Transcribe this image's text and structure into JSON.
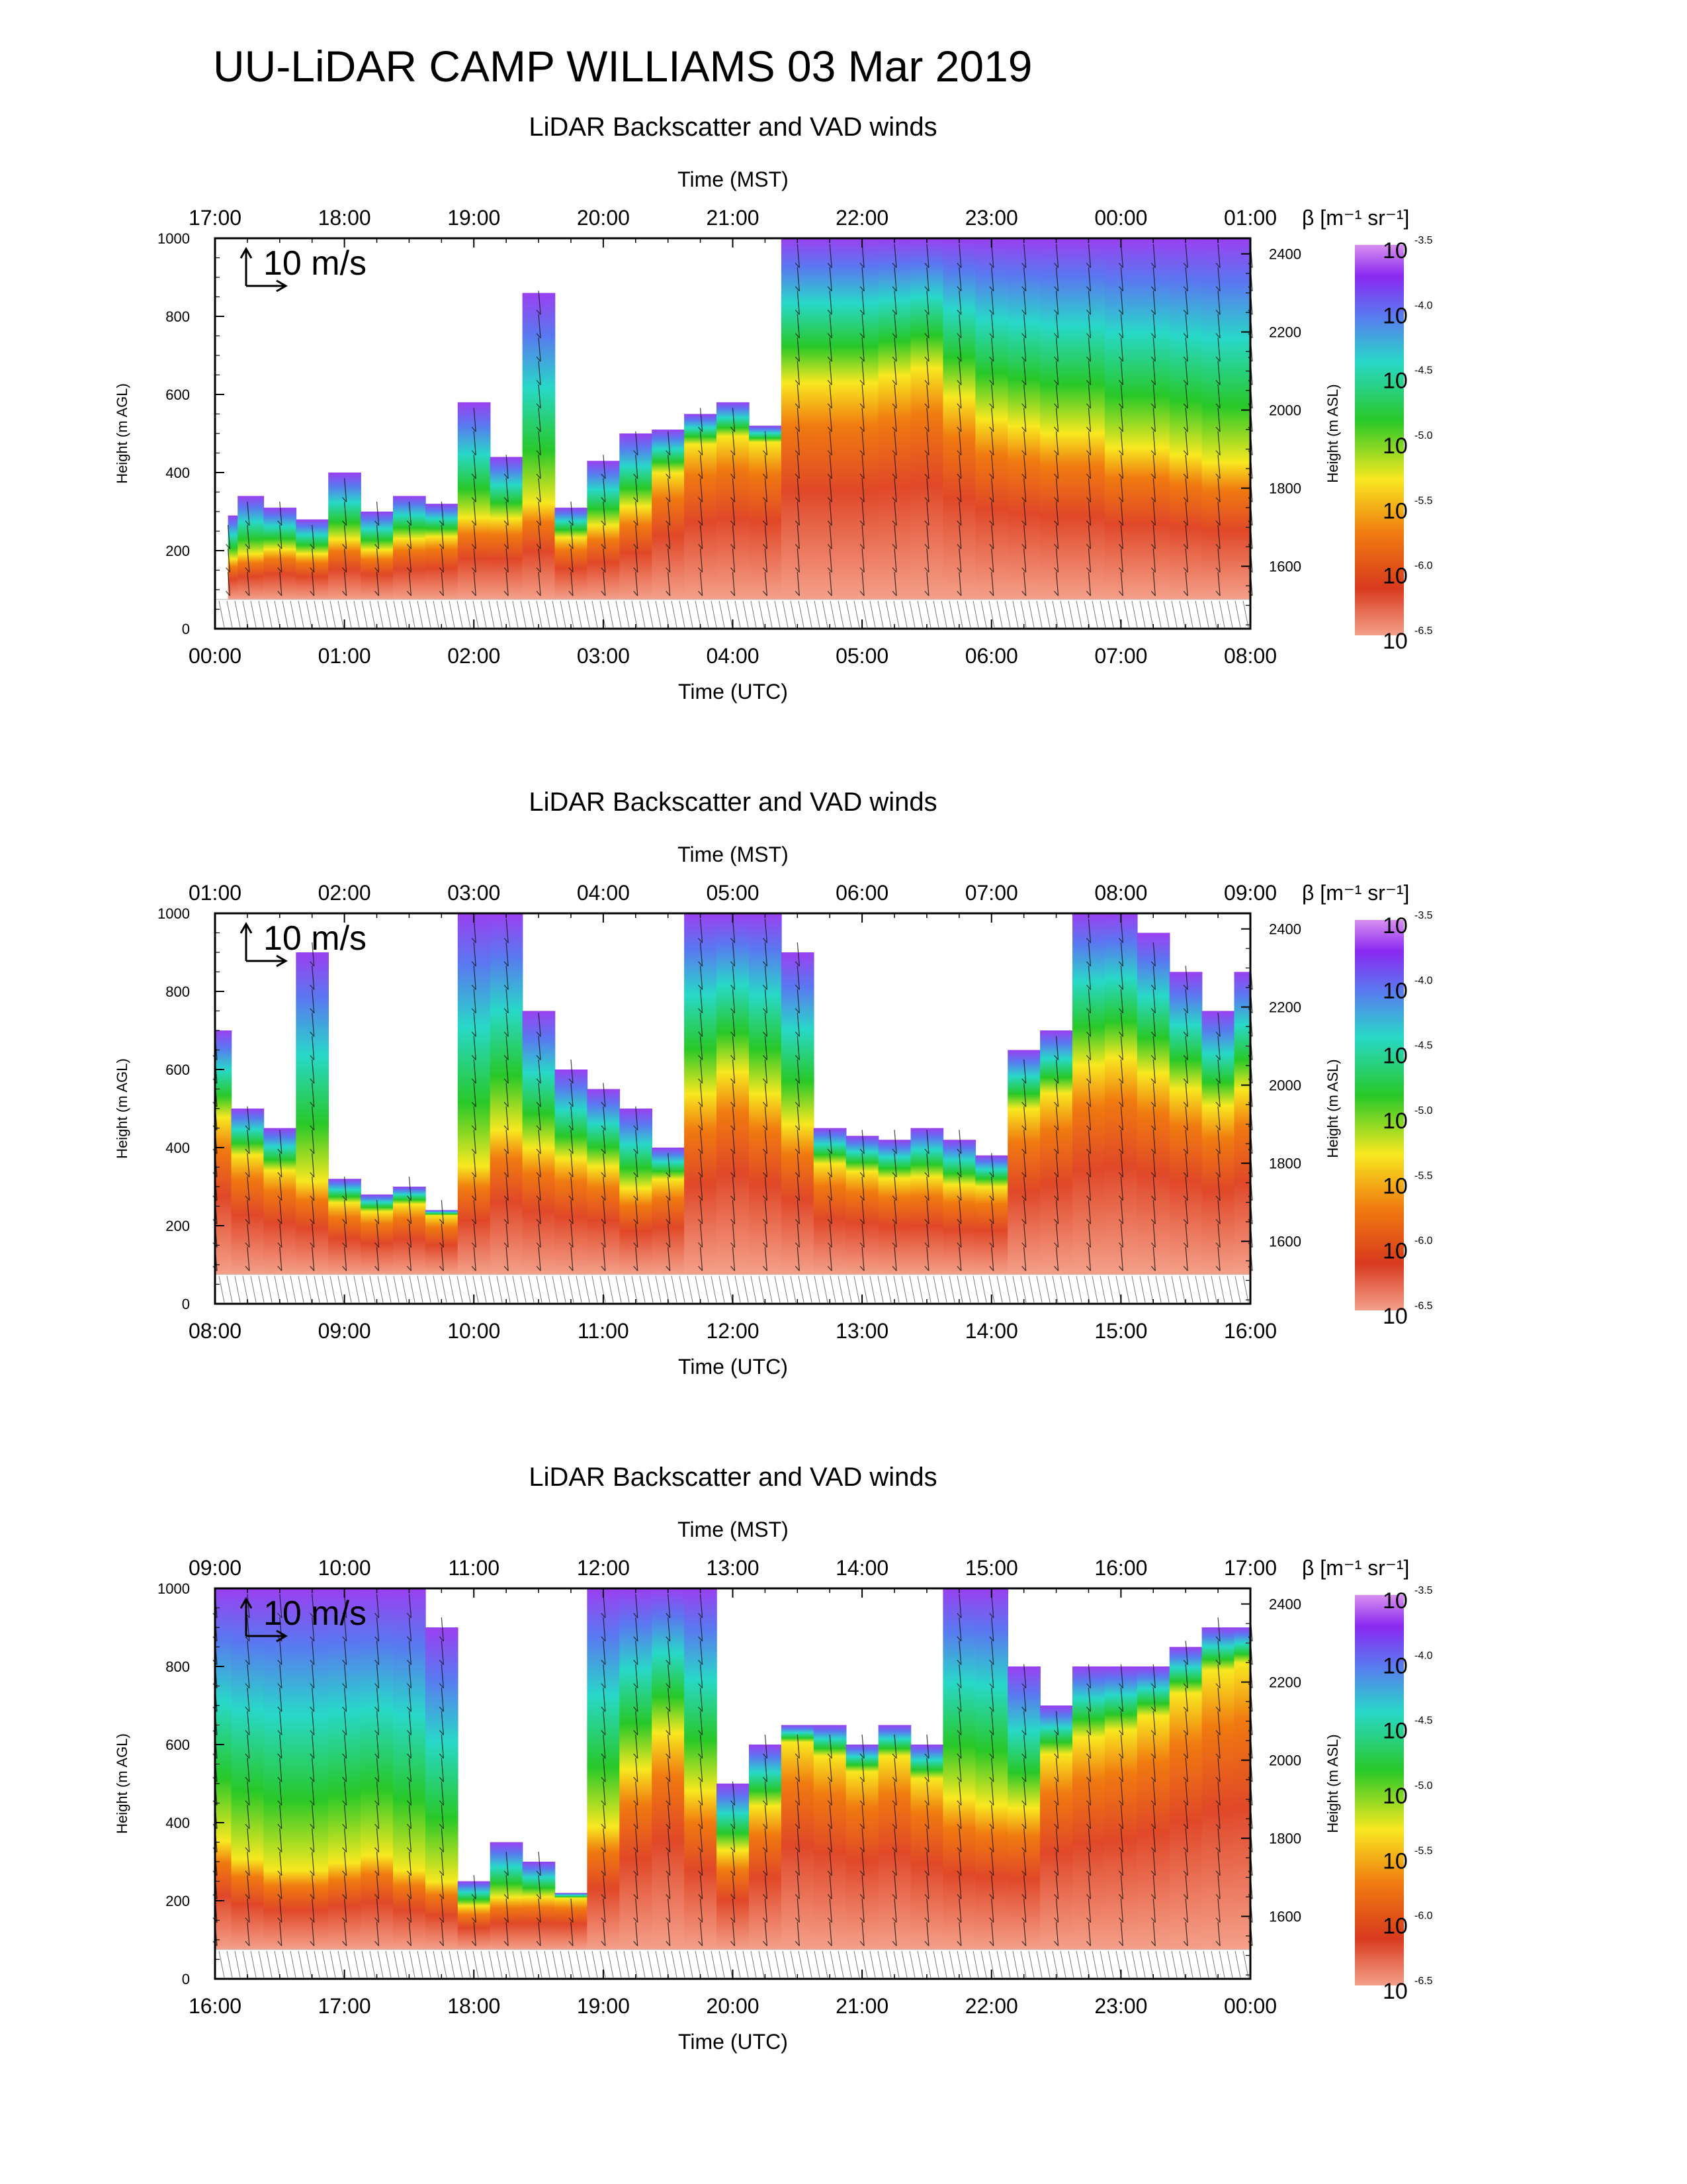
{
  "figure_title": "UU-LiDAR CAMP WILLIAMS 03 Mar 2019",
  "scale_label": "10 m/s",
  "colorbar": {
    "label": "β [m⁻¹ sr⁻¹]",
    "tick_exponents": [
      "-3.5",
      "-4.0",
      "-4.5",
      "-5.0",
      "-5.5",
      "-6.0",
      "-6.5"
    ],
    "base": "10",
    "colors": [
      "#f4a08a",
      "#d83a1e",
      "#f07a10",
      "#f8e820",
      "#28c828",
      "#28d8c8",
      "#5a78f0",
      "#8a28f0",
      "#e890f0"
    ]
  },
  "chart_data": [
    {
      "type": "heatmap",
      "title": "LiDAR Backscatter and VAD winds",
      "xlabel_bottom": "Time (UTC)",
      "xlabel_top": "Time (MST)",
      "ylabel_left": "Height (m AGL)",
      "ylabel_right": "Height (m ASL)",
      "x_ticks_utc": [
        "00:00",
        "01:00",
        "02:00",
        "03:00",
        "04:00",
        "05:00",
        "06:00",
        "07:00",
        "08:00"
      ],
      "x_ticks_mst": [
        "17:00",
        "18:00",
        "19:00",
        "20:00",
        "21:00",
        "22:00",
        "23:00",
        "00:00",
        "01:00"
      ],
      "y_ticks_left": [
        "0",
        "200",
        "400",
        "600",
        "800",
        "1000"
      ],
      "y_ticks_right": [
        "1600",
        "1800",
        "2000",
        "2200",
        "2400"
      ],
      "ylim_agl": [
        0,
        1000
      ],
      "xlim_hours": [
        0,
        8
      ],
      "profile_hours": [
        0.1,
        0.25,
        0.5,
        0.75,
        1.0,
        1.25,
        1.5,
        1.75,
        2.0,
        2.25,
        2.5,
        2.75,
        3.0,
        3.25,
        3.5,
        3.75,
        4.0,
        4.25,
        4.5,
        4.75,
        5.0,
        5.25,
        5.5,
        5.75,
        6.0,
        6.25,
        6.5,
        6.75,
        7.0,
        7.25,
        7.5,
        7.75,
        8.0
      ],
      "top_height_m": [
        290,
        340,
        310,
        280,
        400,
        300,
        340,
        320,
        580,
        440,
        860,
        310,
        430,
        500,
        510,
        550,
        580,
        520,
        1000,
        1000,
        1000,
        1000,
        1000,
        1000,
        1000,
        1000,
        1000,
        1000,
        1000,
        1000,
        1000,
        1000,
        1000
      ],
      "layer_height_m": [
        140,
        150,
        170,
        160,
        190,
        170,
        200,
        210,
        240,
        250,
        270,
        210,
        230,
        280,
        380,
        460,
        480,
        470,
        600,
        600,
        600,
        620,
        640,
        560,
        500,
        480,
        460,
        460,
        420,
        420,
        400,
        380,
        380
      ]
    },
    {
      "type": "heatmap",
      "title": "LiDAR Backscatter and VAD winds",
      "xlabel_bottom": "Time (UTC)",
      "xlabel_top": "Time (MST)",
      "ylabel_left": "Height (m AGL)",
      "ylabel_right": "Height (m ASL)",
      "x_ticks_utc": [
        "08:00",
        "09:00",
        "10:00",
        "11:00",
        "12:00",
        "13:00",
        "14:00",
        "15:00",
        "16:00"
      ],
      "x_ticks_mst": [
        "01:00",
        "02:00",
        "03:00",
        "04:00",
        "05:00",
        "06:00",
        "07:00",
        "08:00",
        "09:00"
      ],
      "y_ticks_left": [
        "0",
        "200",
        "400",
        "600",
        "800",
        "1000"
      ],
      "y_ticks_right": [
        "1600",
        "1800",
        "2000",
        "2200",
        "2400"
      ],
      "ylim_agl": [
        0,
        1000
      ],
      "xlim_hours": [
        8,
        16
      ],
      "profile_hours": [
        8.0,
        8.25,
        8.5,
        8.75,
        9.0,
        9.25,
        9.5,
        9.75,
        10.0,
        10.25,
        10.5,
        10.75,
        11.0,
        11.25,
        11.5,
        11.75,
        12.0,
        12.25,
        12.5,
        12.75,
        13.0,
        13.25,
        13.5,
        13.75,
        14.0,
        14.25,
        14.5,
        14.75,
        15.0,
        15.25,
        15.5,
        15.75,
        16.0
      ],
      "top_height_m": [
        700,
        500,
        450,
        900,
        320,
        280,
        300,
        240,
        1000,
        1000,
        750,
        600,
        550,
        500,
        400,
        1000,
        1000,
        1000,
        900,
        450,
        430,
        420,
        450,
        420,
        380,
        650,
        700,
        1000,
        1000,
        950,
        850,
        750,
        850
      ],
      "layer_height_m": [
        450,
        360,
        320,
        260,
        240,
        220,
        240,
        220,
        300,
        400,
        360,
        340,
        320,
        260,
        300,
        500,
        560,
        500,
        420,
        340,
        320,
        300,
        300,
        280,
        280,
        480,
        520,
        580,
        600,
        560,
        520,
        480,
        520
      ]
    },
    {
      "type": "heatmap",
      "title": "LiDAR Backscatter and VAD winds",
      "xlabel_bottom": "Time (UTC)",
      "xlabel_top": "Time (MST)",
      "ylabel_left": "Height (m AGL)",
      "ylabel_right": "Height (m ASL)",
      "x_ticks_utc": [
        "16:00",
        "17:00",
        "18:00",
        "19:00",
        "20:00",
        "21:00",
        "22:00",
        "23:00",
        "00:00"
      ],
      "x_ticks_mst": [
        "09:00",
        "10:00",
        "11:00",
        "12:00",
        "13:00",
        "14:00",
        "15:00",
        "16:00",
        "17:00"
      ],
      "y_ticks_left": [
        "0",
        "200",
        "400",
        "600",
        "800",
        "1000"
      ],
      "y_ticks_right": [
        "1600",
        "1800",
        "2000",
        "2200",
        "2400"
      ],
      "ylim_agl": [
        0,
        1000
      ],
      "xlim_hours": [
        16,
        24
      ],
      "profile_hours": [
        16.0,
        16.25,
        16.5,
        16.75,
        17.0,
        17.25,
        17.5,
        17.75,
        18.0,
        18.25,
        18.5,
        18.75,
        19.0,
        19.25,
        19.5,
        19.75,
        20.0,
        20.25,
        20.5,
        20.75,
        21.0,
        21.25,
        21.5,
        21.75,
        22.0,
        22.25,
        22.5,
        22.75,
        23.0,
        23.25,
        23.5,
        23.75,
        24.0
      ],
      "top_height_m": [
        1000,
        1000,
        1000,
        1000,
        1000,
        1000,
        1000,
        900,
        250,
        350,
        300,
        220,
        1000,
        1000,
        1000,
        1000,
        500,
        600,
        650,
        650,
        600,
        650,
        600,
        1000,
        1000,
        800,
        700,
        800,
        800,
        800,
        850,
        900,
        900
      ],
      "layer_height_m": [
        300,
        250,
        220,
        220,
        240,
        260,
        220,
        190,
        160,
        170,
        180,
        200,
        340,
        500,
        600,
        440,
        300,
        420,
        600,
        560,
        520,
        560,
        500,
        420,
        400,
        400,
        560,
        600,
        620,
        660,
        720,
        780,
        800
      ]
    }
  ]
}
